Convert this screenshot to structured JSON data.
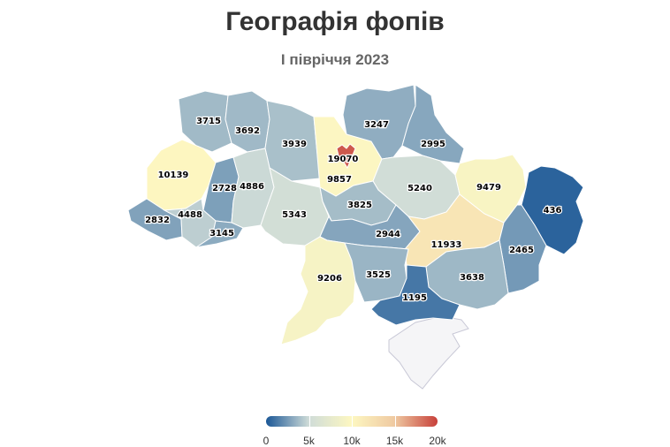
{
  "title": "Географія фопів",
  "subtitle": "І півріччя 2023",
  "colors": {
    "scale": [
      "#1b5796",
      "#cfdcd8",
      "#fdf7c1",
      "#efc9a1",
      "#c7403a"
    ],
    "crimea": "#f5f5f7"
  },
  "legend": {
    "min": 0,
    "max": 20000,
    "ticks": [
      {
        "value": 0,
        "label": "0"
      },
      {
        "value": 5000,
        "label": "5k"
      },
      {
        "value": 10000,
        "label": "10k"
      },
      {
        "value": 15000,
        "label": "15k"
      },
      {
        "value": 20000,
        "label": "20k"
      }
    ]
  },
  "regions": [
    {
      "id": "volyn",
      "value": 3715,
      "label": "3715"
    },
    {
      "id": "rivne",
      "value": 3692,
      "label": "3692"
    },
    {
      "id": "zhytomyr",
      "value": 3939,
      "label": "3939"
    },
    {
      "id": "kyiv-oblast",
      "value": 9857,
      "label": "9857"
    },
    {
      "id": "kyiv-city",
      "value": 19070,
      "label": "19070"
    },
    {
      "id": "chernihiv",
      "value": 3247,
      "label": "3247"
    },
    {
      "id": "sumy",
      "value": 2995,
      "label": "2995"
    },
    {
      "id": "lviv",
      "value": 10139,
      "label": "10139"
    },
    {
      "id": "ternopil",
      "value": 2728,
      "label": "2728"
    },
    {
      "id": "khmelnytskyi",
      "value": 4886,
      "label": "4886"
    },
    {
      "id": "poltava",
      "value": 5240,
      "label": "5240"
    },
    {
      "id": "kharkiv",
      "value": 9479,
      "label": "9479"
    },
    {
      "id": "luhansk",
      "value": 436,
      "label": "436"
    },
    {
      "id": "zakarpattia",
      "value": 2832,
      "label": "2832"
    },
    {
      "id": "ivano-frankivsk",
      "value": 4488,
      "label": "4488"
    },
    {
      "id": "vinnytsia",
      "value": 5343,
      "label": "5343"
    },
    {
      "id": "cherkasy",
      "value": 3825,
      "label": "3825"
    },
    {
      "id": "chernivtsi",
      "value": 3145,
      "label": "3145"
    },
    {
      "id": "kirovohrad",
      "value": 2944,
      "label": "2944"
    },
    {
      "id": "dnipro",
      "value": 11933,
      "label": "11933"
    },
    {
      "id": "donetsk",
      "value": 2465,
      "label": "2465"
    },
    {
      "id": "odesa",
      "value": 9206,
      "label": "9206"
    },
    {
      "id": "mykolaiv",
      "value": 3525,
      "label": "3525"
    },
    {
      "id": "zaporizhzhia",
      "value": 3638,
      "label": "3638"
    },
    {
      "id": "kherson",
      "value": 1195,
      "label": "1195"
    }
  ]
}
